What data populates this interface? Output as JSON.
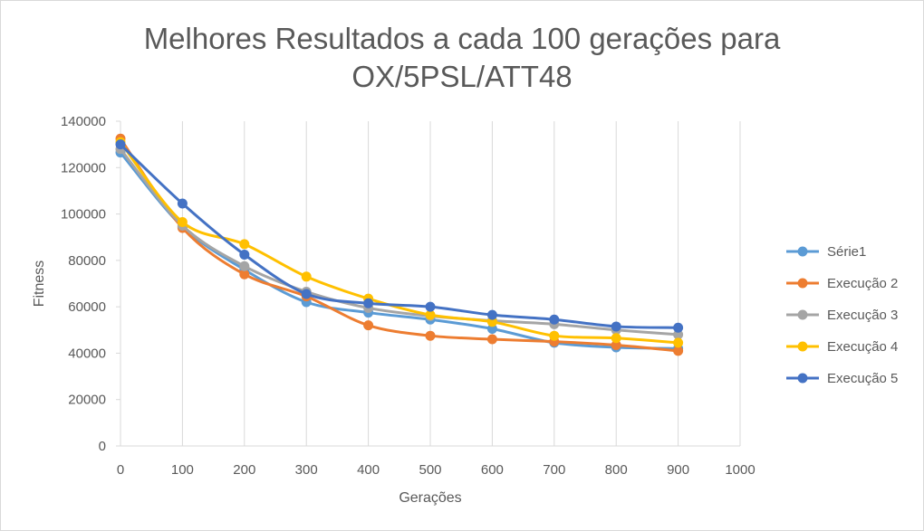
{
  "chart_data": {
    "type": "line",
    "title_lines": [
      "Melhores Resultados a cada 100 gerações para",
      "OX/5PSL/ATT48"
    ],
    "xlabel": "Gerações",
    "ylabel": "Fitness",
    "xlim": [
      0,
      1000
    ],
    "ylim": [
      0,
      140000
    ],
    "xticks": [
      0,
      100,
      200,
      300,
      400,
      500,
      600,
      700,
      800,
      900,
      1000
    ],
    "yticks": [
      0,
      20000,
      40000,
      60000,
      80000,
      100000,
      120000,
      140000
    ],
    "grid": "vertical",
    "legend_position": "right",
    "x": [
      0,
      100,
      200,
      300,
      400,
      500,
      600,
      700,
      800,
      900
    ],
    "series": [
      {
        "name": "Série1",
        "color": "#5b9bd5",
        "values": [
          126500,
          94500,
          76000,
          62000,
          57500,
          54500,
          50500,
          44500,
          42500,
          42000
        ]
      },
      {
        "name": "Execução 2",
        "color": "#ed7d31",
        "values": [
          132500,
          94000,
          74000,
          64500,
          52000,
          47500,
          46000,
          45000,
          43500,
          41000
        ]
      },
      {
        "name": "Execução 3",
        "color": "#a5a5a5",
        "values": [
          128000,
          95000,
          77500,
          66500,
          59500,
          56000,
          54000,
          52500,
          50000,
          48000
        ]
      },
      {
        "name": "Execução 4",
        "color": "#ffc000",
        "values": [
          131000,
          96500,
          87000,
          73000,
          63500,
          56500,
          53500,
          47500,
          46500,
          44500
        ]
      },
      {
        "name": "Execução 5",
        "color": "#4472c4",
        "values": [
          130000,
          104500,
          82500,
          65500,
          61500,
          60000,
          56500,
          54500,
          51500,
          51000
        ]
      }
    ]
  }
}
